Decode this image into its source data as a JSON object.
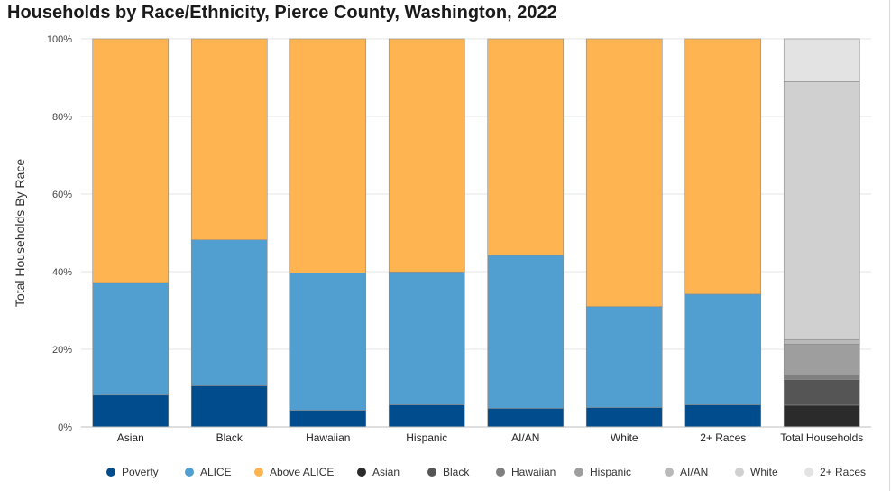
{
  "chart_data": {
    "type": "bar",
    "stacked": true,
    "title": "Households by Race/Ethnicity, Pierce County, Washington, 2022",
    "ylabel": "Total Households By Race",
    "xlabel": "",
    "ylim": [
      0,
      100
    ],
    "yticks": [
      "0%",
      "20%",
      "40%",
      "60%",
      "80%",
      "100%"
    ],
    "categories": [
      "Asian",
      "Black",
      "Hawaiian",
      "Hispanic",
      "AI/AN",
      "White",
      "2+ Races",
      "Total Households"
    ],
    "series": [
      {
        "name": "Poverty",
        "color": "#004c8c",
        "values": [
          8.2,
          10.6,
          4.3,
          5.7,
          4.8,
          5.0,
          5.7,
          null
        ]
      },
      {
        "name": "ALICE",
        "color": "#519fd1",
        "values": [
          29.0,
          37.6,
          35.4,
          34.2,
          39.4,
          26.0,
          28.5,
          null
        ]
      },
      {
        "name": "Above ALICE",
        "color": "#ffb452",
        "values": [
          62.8,
          51.8,
          60.3,
          60.1,
          55.8,
          69.0,
          65.8,
          null
        ]
      },
      {
        "name": "Asian",
        "color": "#2b2b2b",
        "values": [
          null,
          null,
          null,
          null,
          null,
          null,
          null,
          5.6
        ]
      },
      {
        "name": "Black",
        "color": "#555555",
        "values": [
          null,
          null,
          null,
          null,
          null,
          null,
          null,
          6.6
        ]
      },
      {
        "name": "Hawaiian",
        "color": "#7f7f7f",
        "values": [
          null,
          null,
          null,
          null,
          null,
          null,
          null,
          1.2
        ]
      },
      {
        "name": "Hispanic",
        "color": "#9e9e9e",
        "values": [
          null,
          null,
          null,
          null,
          null,
          null,
          null,
          7.9
        ]
      },
      {
        "name": "AI/AN",
        "color": "#b9b9b9",
        "values": [
          null,
          null,
          null,
          null,
          null,
          null,
          null,
          1.2
        ]
      },
      {
        "name": "White",
        "color": "#d0d0d0",
        "values": [
          null,
          null,
          null,
          null,
          null,
          null,
          null,
          66.5
        ]
      },
      {
        "name": "2+ Races",
        "color": "#e3e3e3",
        "values": [
          null,
          null,
          null,
          null,
          null,
          null,
          null,
          11.0
        ]
      }
    ],
    "legend_position": "bottom"
  }
}
